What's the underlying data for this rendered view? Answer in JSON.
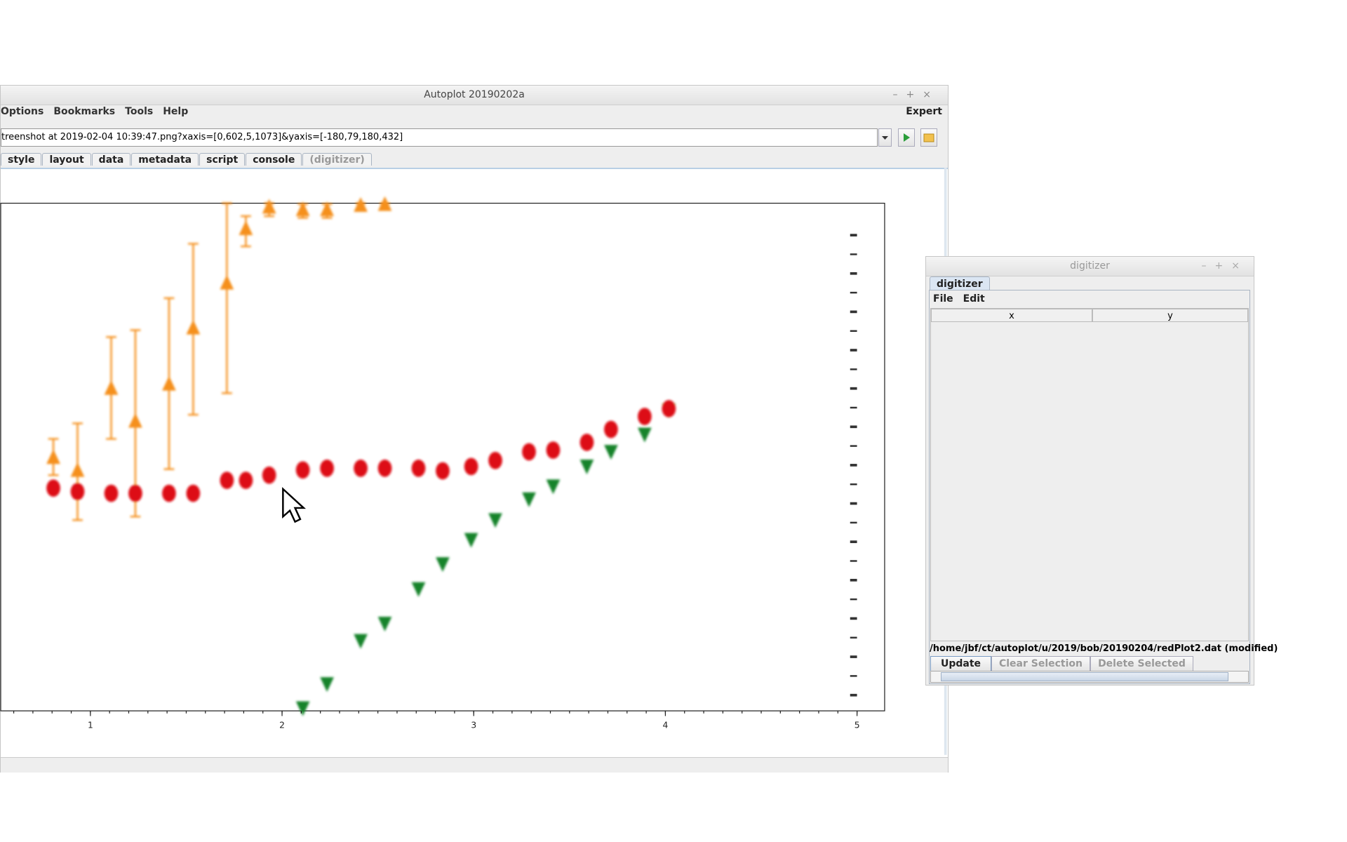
{
  "autoplot": {
    "title": "Autoplot 20190202a",
    "menu": [
      "Options",
      "Bookmarks",
      "Tools",
      "Help"
    ],
    "expert": "Expert",
    "uri": "treenshot at 2019-02-04 10:39:47.png?xaxis=[0,602,5,1073]&yaxis=[-180,79,180,432]",
    "tabs": [
      "style",
      "layout",
      "data",
      "metadata",
      "script",
      "console",
      "(digitizer)"
    ],
    "plot": {
      "xlim": [
        0.532,
        5.144
      ],
      "xticks": [
        1,
        2,
        3,
        4,
        5
      ]
    }
  },
  "digitizer": {
    "title": "digitizer",
    "tab": "digitizer",
    "menu": [
      "File",
      "Edit"
    ],
    "columns": [
      "x",
      "y"
    ],
    "file": "/home/jbf/ct/autoplot/u/2019/bob/20190204/redPlot2.dat (modified)",
    "buttons": [
      "Update",
      "Clear Selection",
      "Delete Selected"
    ]
  }
}
